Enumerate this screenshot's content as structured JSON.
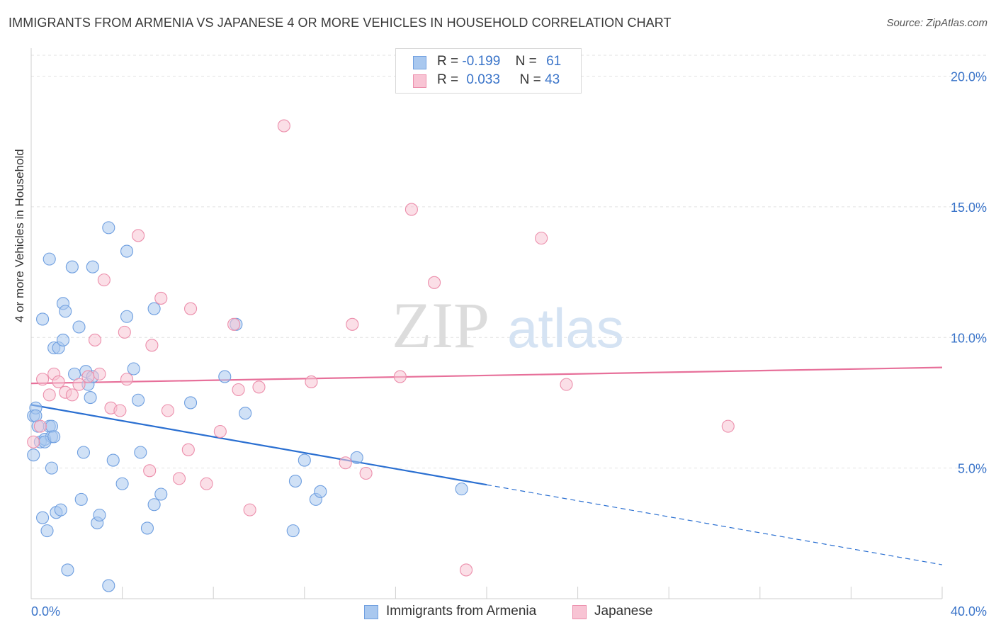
{
  "header": {
    "title": "IMMIGRANTS FROM ARMENIA VS JAPANESE 4 OR MORE VEHICLES IN HOUSEHOLD CORRELATION CHART",
    "source": "Source: ZipAtlas.com"
  },
  "legend": {
    "r_label": "R =",
    "n_label": "N =",
    "rows": [
      {
        "r": "-0.199",
        "n": "61",
        "color": "#a9c8ef",
        "border": "#6f9fe0"
      },
      {
        "r": "0.033",
        "n": "43",
        "color": "#f8c4d4",
        "border": "#ec8fac"
      }
    ]
  },
  "watermark": {
    "zip": "ZIP",
    "atlas": "atlas"
  },
  "chart_data": {
    "type": "scatter",
    "title": "IMMIGRANTS FROM ARMENIA VS JAPANESE 4 OR MORE VEHICLES IN HOUSEHOLD CORRELATION CHART",
    "xlabel": "",
    "ylabel": "4 or more Vehicles in Household",
    "xlim": [
      0,
      40
    ],
    "ylim": [
      0,
      20.8
    ],
    "x_tick_labels": [
      "0.0%",
      "40.0%"
    ],
    "y_ticks": [
      5,
      10,
      15,
      20
    ],
    "y_tick_labels": [
      "5.0%",
      "10.0%",
      "15.0%",
      "20.0%"
    ],
    "grid": "horizontal dashed",
    "legend_position": "top-center",
    "series": [
      {
        "name": "Immigrants from Armenia",
        "color": "#a9c8ef",
        "edge": "#6f9fe0",
        "line_color": "#2a6fd1",
        "trend": {
          "x0": 0,
          "y0": 7.42,
          "x1": 20,
          "y1": 4.36,
          "x_dash_end": 40,
          "y_dash_end": 1.3
        },
        "points": [
          [
            0.1,
            5.5
          ],
          [
            0.1,
            7.0
          ],
          [
            0.2,
            7.3
          ],
          [
            0.3,
            6.6
          ],
          [
            0.4,
            6.0
          ],
          [
            0.5,
            10.7
          ],
          [
            0.5,
            3.1
          ],
          [
            0.6,
            6.1
          ],
          [
            0.7,
            2.6
          ],
          [
            0.8,
            13.0
          ],
          [
            0.8,
            6.6
          ],
          [
            0.9,
            6.2
          ],
          [
            0.9,
            5.0
          ],
          [
            1.0,
            9.6
          ],
          [
            1.1,
            3.3
          ],
          [
            1.2,
            9.6
          ],
          [
            1.3,
            3.4
          ],
          [
            1.4,
            9.9
          ],
          [
            1.4,
            11.3
          ],
          [
            1.5,
            11.0
          ],
          [
            1.6,
            1.1
          ],
          [
            1.8,
            12.7
          ],
          [
            1.9,
            8.6
          ],
          [
            2.1,
            10.4
          ],
          [
            2.2,
            3.8
          ],
          [
            2.3,
            5.6
          ],
          [
            2.4,
            8.7
          ],
          [
            2.5,
            8.2
          ],
          [
            2.6,
            7.7
          ],
          [
            2.7,
            8.5
          ],
          [
            2.7,
            12.7
          ],
          [
            2.9,
            2.9
          ],
          [
            3.0,
            3.2
          ],
          [
            3.4,
            14.2
          ],
          [
            3.4,
            0.5
          ],
          [
            3.6,
            5.3
          ],
          [
            4.0,
            4.4
          ],
          [
            4.2,
            10.8
          ],
          [
            4.2,
            13.3
          ],
          [
            4.5,
            8.8
          ],
          [
            4.7,
            7.6
          ],
          [
            4.8,
            5.6
          ],
          [
            5.1,
            2.7
          ],
          [
            5.4,
            3.6
          ],
          [
            5.4,
            11.1
          ],
          [
            5.7,
            4.0
          ],
          [
            7.0,
            7.5
          ],
          [
            8.5,
            8.5
          ],
          [
            9.0,
            10.5
          ],
          [
            9.4,
            7.1
          ],
          [
            11.5,
            2.6
          ],
          [
            11.6,
            4.5
          ],
          [
            12.0,
            5.3
          ],
          [
            12.5,
            3.8
          ],
          [
            12.7,
            4.1
          ],
          [
            14.3,
            5.4
          ],
          [
            18.9,
            4.2
          ],
          [
            0.2,
            7.0
          ],
          [
            0.6,
            6.0
          ],
          [
            0.9,
            6.6
          ],
          [
            1.0,
            6.2
          ]
        ]
      },
      {
        "name": "Japanese",
        "color": "#f8c4d4",
        "edge": "#ec8fac",
        "line_color": "#e7709a",
        "trend": {
          "x0": 0,
          "y0": 8.24,
          "x1": 40,
          "y1": 8.85
        },
        "points": [
          [
            0.1,
            6.0
          ],
          [
            0.4,
            6.6
          ],
          [
            0.5,
            8.4
          ],
          [
            0.8,
            7.8
          ],
          [
            1.0,
            8.6
          ],
          [
            1.2,
            8.3
          ],
          [
            1.5,
            7.9
          ],
          [
            1.8,
            7.8
          ],
          [
            2.1,
            8.2
          ],
          [
            2.5,
            8.5
          ],
          [
            2.8,
            9.9
          ],
          [
            3.0,
            8.6
          ],
          [
            3.2,
            12.2
          ],
          [
            3.5,
            7.3
          ],
          [
            3.9,
            7.2
          ],
          [
            4.1,
            10.2
          ],
          [
            4.2,
            8.4
          ],
          [
            4.7,
            13.9
          ],
          [
            5.2,
            4.9
          ],
          [
            5.3,
            9.7
          ],
          [
            5.7,
            11.5
          ],
          [
            6.0,
            7.2
          ],
          [
            6.5,
            4.6
          ],
          [
            6.9,
            5.7
          ],
          [
            7.0,
            11.1
          ],
          [
            7.7,
            4.4
          ],
          [
            8.3,
            6.4
          ],
          [
            8.9,
            10.5
          ],
          [
            9.1,
            8.0
          ],
          [
            9.6,
            3.4
          ],
          [
            10.0,
            8.1
          ],
          [
            11.1,
            18.1
          ],
          [
            12.3,
            8.3
          ],
          [
            13.8,
            5.2
          ],
          [
            14.1,
            10.5
          ],
          [
            14.7,
            4.8
          ],
          [
            16.2,
            8.5
          ],
          [
            16.7,
            14.9
          ],
          [
            17.7,
            12.1
          ],
          [
            19.1,
            1.1
          ],
          [
            22.4,
            13.8
          ],
          [
            23.5,
            8.2
          ],
          [
            30.6,
            6.6
          ]
        ]
      }
    ]
  }
}
